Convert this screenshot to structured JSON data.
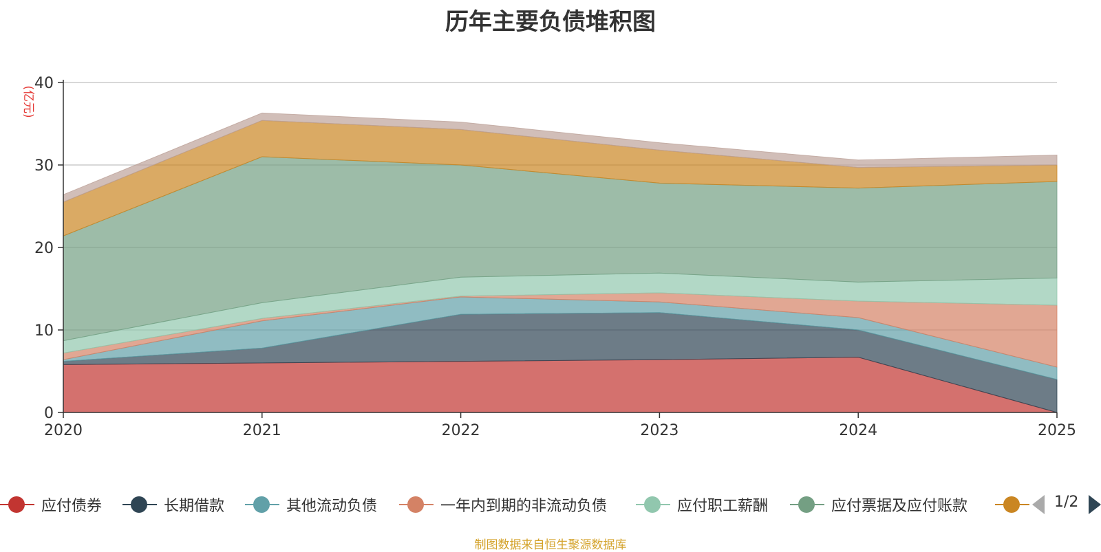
{
  "chart_data": {
    "type": "area",
    "stacked": true,
    "title": "历年主要负债堆积图",
    "ylabel": "(亿元)",
    "ylim": [
      0,
      40
    ],
    "yticks": [
      0,
      10,
      20,
      30,
      40
    ],
    "x": [
      "2020",
      "2021",
      "2022",
      "2023",
      "2024",
      "2025"
    ],
    "series": [
      {
        "name": "应付债券",
        "color": "#c23531",
        "values": [
          5.8,
          6.0,
          6.2,
          6.4,
          6.7,
          0.0
        ]
      },
      {
        "name": "长期借款",
        "color": "#2f4554",
        "values": [
          0.4,
          1.8,
          5.7,
          5.7,
          3.3,
          4.0
        ]
      },
      {
        "name": "其他流动负债",
        "color": "#61a0a8",
        "values": [
          0.2,
          3.3,
          2.1,
          1.3,
          1.5,
          1.5
        ]
      },
      {
        "name": "一年内到期的非流动负债",
        "color": "#d48265",
        "values": [
          0.8,
          0.3,
          0.1,
          1.1,
          2.0,
          7.5
        ]
      },
      {
        "name": "应付职工薪酬",
        "color": "#91c7ae",
        "values": [
          1.5,
          1.9,
          2.3,
          2.4,
          2.3,
          3.3
        ]
      },
      {
        "name": "应付票据及应付账款",
        "color": "#749f83",
        "values": [
          12.7,
          17.7,
          13.6,
          10.9,
          11.4,
          11.7
        ]
      },
      {
        "name": "",
        "color": "#ca8622",
        "values": [
          4.1,
          4.4,
          4.3,
          4.0,
          2.5,
          2.0
        ]
      },
      {
        "name": "",
        "color": "#bda29a",
        "values": [
          0.9,
          0.9,
          0.9,
          0.9,
          0.9,
          1.2
        ]
      }
    ],
    "legend": {
      "position": "bottom",
      "page": "1/2"
    }
  },
  "source_note": "制图数据来自恒生聚源数据库"
}
